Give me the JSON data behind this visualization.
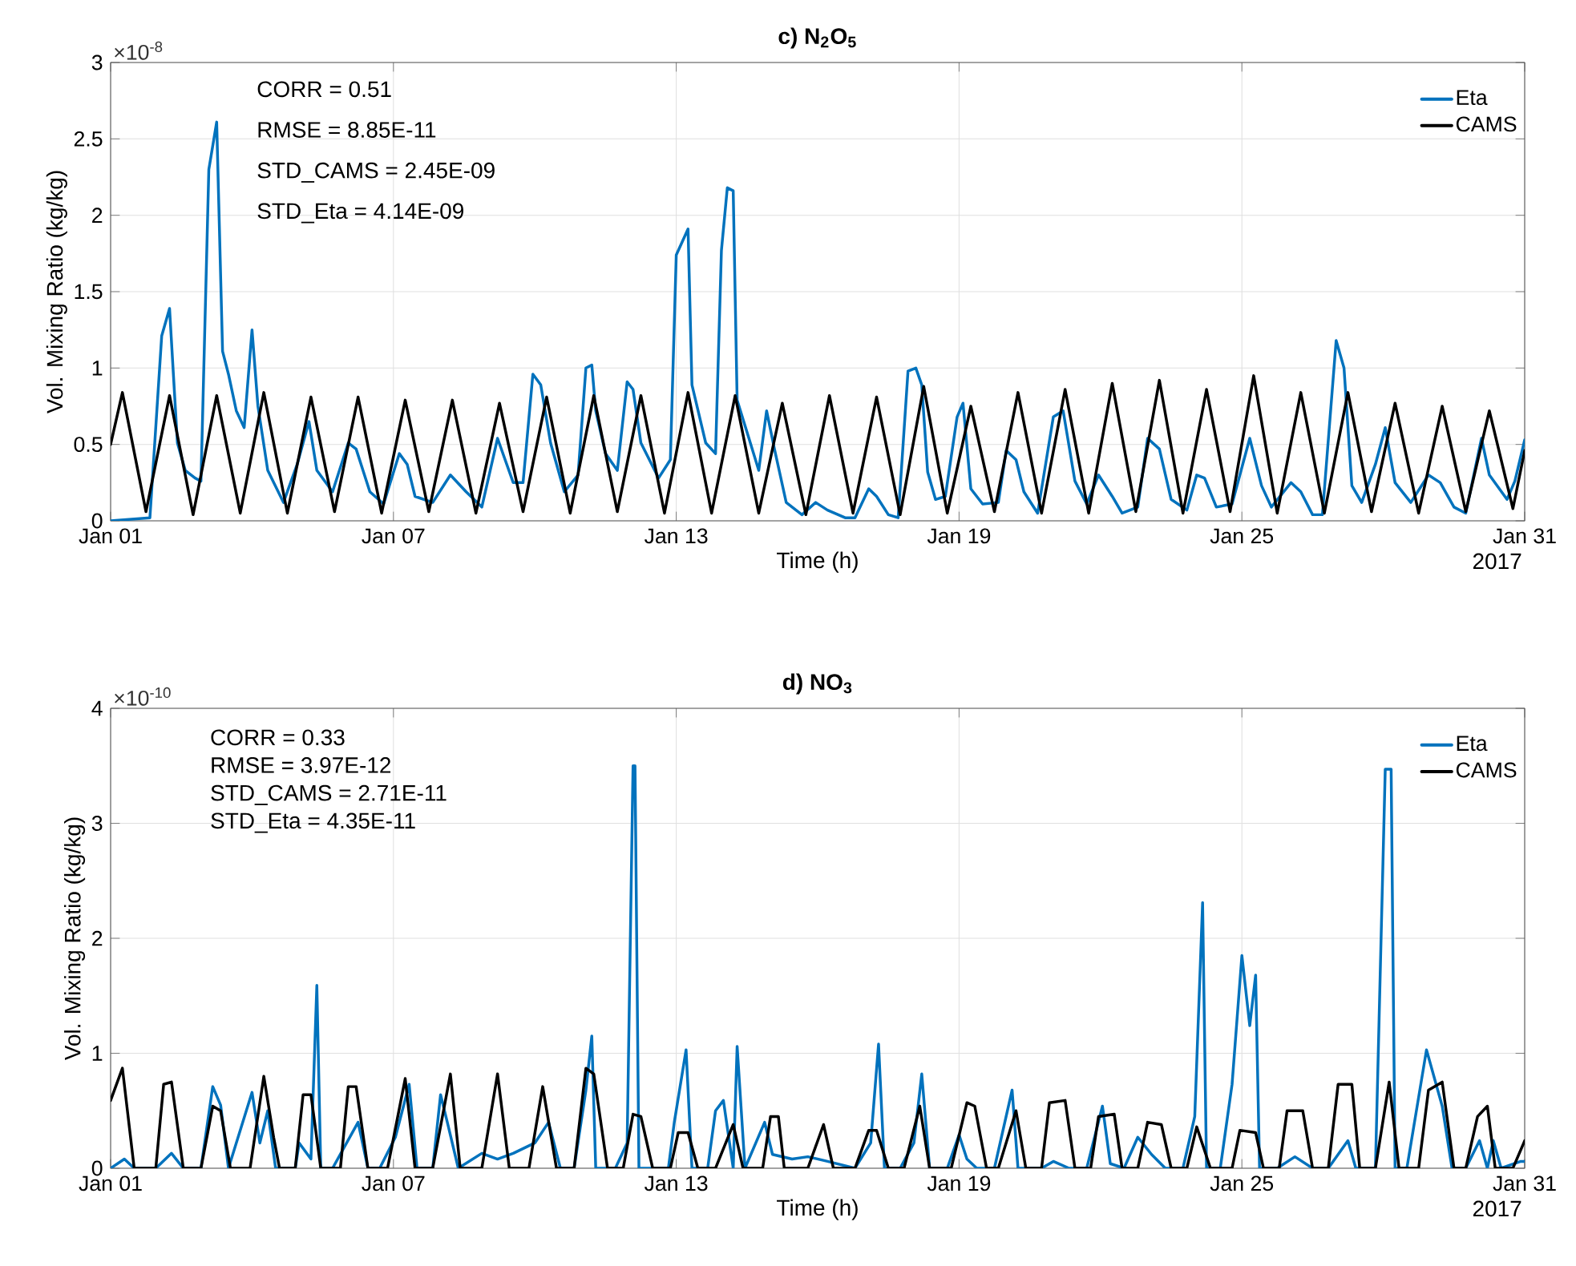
{
  "chart_data": [
    {
      "type": "line",
      "title": "c) N$_{2}$O$_{5}$",
      "xlabel": "Time (h)",
      "ylabel": "Vol. Mixing Ratio (kg/kg)",
      "xlim": [
        "2017-01-01",
        "2017-01-31"
      ],
      "xticks": [
        {
          "value": "2017-01-01",
          "label": "Jan 01"
        },
        {
          "value": "2017-01-07",
          "label": "Jan 07"
        },
        {
          "value": "2017-01-13",
          "label": "Jan 13"
        },
        {
          "value": "2017-01-19",
          "label": "Jan 19"
        },
        {
          "value": "2017-01-25",
          "label": "Jan 25"
        },
        {
          "value": "2017-01-31",
          "label": "Jan 31"
        }
      ],
      "ylim": [
        0,
        3
      ],
      "yticks": [
        0,
        0.5,
        1,
        1.5,
        2,
        2.5,
        3
      ],
      "grid": true,
      "legend": "top right",
      "annotations": [
        "×10$^{-8}$",
        "2017",
        "CORR = 0.51",
        "RMSE = 8.85E-11",
        "STD_CAMS = 2.45E-09",
        "STD_Eta = 4.14E-09"
      ],
      "series": [
        {
          "name": "Eta",
          "color": "#0072bd",
          "x": [
            "2017-01-01T00:00",
            "2017-01-01T20:00",
            "2017-01-02T02:00",
            "2017-01-02T06:00",
            "2017-01-02T10:00",
            "2017-01-02T14:00",
            "2017-01-02T19:00",
            "2017-01-02T22:00",
            "2017-01-03T02:00",
            "2017-01-03T06:00",
            "2017-01-03T09:00",
            "2017-01-03T12:00",
            "2017-01-03T16:00",
            "2017-01-03T20:00",
            "2017-01-04T00:00",
            "2017-01-04T03:00",
            "2017-01-04T08:00",
            "2017-01-04T16:00",
            "2017-01-04T23:00",
            "2017-01-05T05:00",
            "2017-01-05T09:00",
            "2017-01-05T17:00",
            "2017-01-06T01:00",
            "2017-01-06T05:00",
            "2017-01-06T12:00",
            "2017-01-06T19:00",
            "2017-01-07T03:00",
            "2017-01-07T07:00",
            "2017-01-07T11:00",
            "2017-01-07T20:00",
            "2017-01-08T05:00",
            "2017-01-08T13:00",
            "2017-01-08T21:00",
            "2017-01-09T05:00",
            "2017-01-09T13:00",
            "2017-01-09T18:00",
            "2017-01-09T23:00",
            "2017-01-10T03:00",
            "2017-01-10T08:00",
            "2017-01-10T15:00",
            "2017-01-10T22:00",
            "2017-01-11T02:00",
            "2017-01-11T05:00",
            "2017-01-11T07:00",
            "2017-01-11T12:00",
            "2017-01-11T18:00",
            "2017-01-11T23:00",
            "2017-01-12T02:00",
            "2017-01-12T06:00",
            "2017-01-12T15:00",
            "2017-01-12T21:00",
            "2017-01-13T00:00",
            "2017-01-13T06:00",
            "2017-01-13T08:00",
            "2017-01-13T15:00",
            "2017-01-13T20:00",
            "2017-01-13T23:00",
            "2017-01-14T02:00",
            "2017-01-14T05:00",
            "2017-01-14T07:00",
            "2017-01-14T13:00",
            "2017-01-14T18:00",
            "2017-01-14T22:00",
            "2017-01-15T02:00",
            "2017-01-15T08:00",
            "2017-01-15T16:00",
            "2017-01-15T23:00",
            "2017-01-16T05:00",
            "2017-01-16T14:00",
            "2017-01-16T19:00",
            "2017-01-17T02:00",
            "2017-01-17T06:00",
            "2017-01-17T12:00",
            "2017-01-17T17:00",
            "2017-01-17T22:00",
            "2017-01-18T02:00",
            "2017-01-18T05:00",
            "2017-01-18T08:00",
            "2017-01-18T12:00",
            "2017-01-18T17:00",
            "2017-01-18T23:00",
            "2017-01-19T02:00",
            "2017-01-19T06:00",
            "2017-01-19T12:00",
            "2017-01-19T20:00",
            "2017-01-20T00:00",
            "2017-01-20T05:00",
            "2017-01-20T09:00",
            "2017-01-20T16:00",
            "2017-01-21T00:00",
            "2017-01-21T05:00",
            "2017-01-21T11:00",
            "2017-01-21T17:00",
            "2017-01-21T23:00",
            "2017-01-22T06:00",
            "2017-01-22T11:00",
            "2017-01-22T19:00",
            "2017-01-23T00:00",
            "2017-01-23T06:00",
            "2017-01-23T12:00",
            "2017-01-23T20:00",
            "2017-01-24T01:00",
            "2017-01-24T05:00",
            "2017-01-24T11:00",
            "2017-01-24T19:00",
            "2017-01-25T04:00",
            "2017-01-25T10:00",
            "2017-01-25T15:00",
            "2017-01-26T01:00",
            "2017-01-26T06:00",
            "2017-01-26T12:00",
            "2017-01-26T17:00",
            "2017-01-27T00:00",
            "2017-01-27T04:00",
            "2017-01-27T08:00",
            "2017-01-27T13:00",
            "2017-01-27T20:00",
            "2017-01-28T01:00",
            "2017-01-28T06:00",
            "2017-01-28T14:00",
            "2017-01-28T23:00",
            "2017-01-29T05:00",
            "2017-01-29T12:00",
            "2017-01-29T18:00",
            "2017-01-30T02:00",
            "2017-01-30T06:00",
            "2017-01-30T15:00",
            "2017-01-30T19:00",
            "2017-01-31T00:00"
          ],
          "values": [
            0,
            0.02,
            1.21,
            1.39,
            0.51,
            0.33,
            0.28,
            0.26,
            2.3,
            2.61,
            1.11,
            0.96,
            0.72,
            0.61,
            1.25,
            0.75,
            0.33,
            0.12,
            0.37,
            0.65,
            0.33,
            0.19,
            0.51,
            0.47,
            0.19,
            0.11,
            0.44,
            0.37,
            0.16,
            0.12,
            0.3,
            0.19,
            0.09,
            0.54,
            0.25,
            0.25,
            0.96,
            0.89,
            0.51,
            0.19,
            0.3,
            1.0,
            1.02,
            0.72,
            0.44,
            0.33,
            0.91,
            0.86,
            0.51,
            0.28,
            0.4,
            1.74,
            1.91,
            0.89,
            0.51,
            0.44,
            1.77,
            2.18,
            2.16,
            0.79,
            0.54,
            0.33,
            0.72,
            0.47,
            0.12,
            0.04,
            0.12,
            0.07,
            0.02,
            0.02,
            0.21,
            0.16,
            0.04,
            0.02,
            0.98,
            1.0,
            0.89,
            0.32,
            0.14,
            0.16,
            0.68,
            0.77,
            0.21,
            0.11,
            0.12,
            0.46,
            0.4,
            0.19,
            0.05,
            0.68,
            0.72,
            0.26,
            0.11,
            0.3,
            0.16,
            0.05,
            0.09,
            0.54,
            0.47,
            0.14,
            0.07,
            0.3,
            0.28,
            0.09,
            0.11,
            0.54,
            0.23,
            0.09,
            0.25,
            0.19,
            0.04,
            0.04,
            1.18,
            1.0,
            0.23,
            0.12,
            0.37,
            0.61,
            0.25,
            0.12,
            0.3,
            0.25,
            0.09,
            0.05,
            0.54,
            0.3,
            0.14,
            0.26,
            0.53
          ]
        },
        {
          "name": "CAMS",
          "color": "#000000",
          "x": [
            "2017-01-01T00:00",
            "2017-01-01T06:00",
            "2017-01-01T18:00",
            "2017-01-02T06:00",
            "2017-01-02T18:00",
            "2017-01-03T06:00",
            "2017-01-03T18:00",
            "2017-01-04T06:00",
            "2017-01-04T18:00",
            "2017-01-05T06:00",
            "2017-01-05T18:00",
            "2017-01-06T06:00",
            "2017-01-06T18:00",
            "2017-01-07T06:00",
            "2017-01-07T18:00",
            "2017-01-08T06:00",
            "2017-01-08T18:00",
            "2017-01-09T06:00",
            "2017-01-09T18:00",
            "2017-01-10T06:00",
            "2017-01-10T18:00",
            "2017-01-11T06:00",
            "2017-01-11T18:00",
            "2017-01-12T06:00",
            "2017-01-12T18:00",
            "2017-01-13T06:00",
            "2017-01-13T18:00",
            "2017-01-14T06:00",
            "2017-01-14T18:00",
            "2017-01-15T06:00",
            "2017-01-15T18:00",
            "2017-01-16T06:00",
            "2017-01-16T18:00",
            "2017-01-17T06:00",
            "2017-01-17T18:00",
            "2017-01-18T06:00",
            "2017-01-18T18:00",
            "2017-01-19T06:00",
            "2017-01-19T18:00",
            "2017-01-20T06:00",
            "2017-01-20T18:00",
            "2017-01-21T06:00",
            "2017-01-21T18:00",
            "2017-01-22T06:00",
            "2017-01-22T18:00",
            "2017-01-23T06:00",
            "2017-01-23T18:00",
            "2017-01-24T06:00",
            "2017-01-24T18:00",
            "2017-01-25T06:00",
            "2017-01-25T18:00",
            "2017-01-26T06:00",
            "2017-01-26T18:00",
            "2017-01-27T06:00",
            "2017-01-27T18:00",
            "2017-01-28T06:00",
            "2017-01-28T18:00",
            "2017-01-29T06:00",
            "2017-01-29T18:00",
            "2017-01-30T06:00",
            "2017-01-30T18:00",
            "2017-01-31T00:00"
          ],
          "values": [
            0.5,
            0.84,
            0.06,
            0.82,
            0.04,
            0.82,
            0.05,
            0.84,
            0.05,
            0.81,
            0.06,
            0.81,
            0.05,
            0.79,
            0.06,
            0.79,
            0.05,
            0.77,
            0.06,
            0.81,
            0.05,
            0.82,
            0.06,
            0.82,
            0.05,
            0.84,
            0.05,
            0.82,
            0.05,
            0.77,
            0.04,
            0.82,
            0.05,
            0.81,
            0.04,
            0.88,
            0.05,
            0.75,
            0.06,
            0.84,
            0.05,
            0.86,
            0.05,
            0.9,
            0.06,
            0.92,
            0.05,
            0.86,
            0.06,
            0.95,
            0.05,
            0.84,
            0.05,
            0.84,
            0.06,
            0.77,
            0.05,
            0.75,
            0.06,
            0.72,
            0.08,
            0.46
          ]
        }
      ]
    },
    {
      "type": "line",
      "title": "d) NO$_{3}$",
      "xlabel": "Time (h)",
      "ylabel": "Vol. Mixing Ratio (kg/kg)",
      "xlim": [
        "2017-01-01",
        "2017-01-31"
      ],
      "xticks": [
        {
          "value": "2017-01-01",
          "label": "Jan 01"
        },
        {
          "value": "2017-01-07",
          "label": "Jan 07"
        },
        {
          "value": "2017-01-13",
          "label": "Jan 13"
        },
        {
          "value": "2017-01-19",
          "label": "Jan 19"
        },
        {
          "value": "2017-01-25",
          "label": "Jan 25"
        },
        {
          "value": "2017-01-31",
          "label": "Jan 31"
        }
      ],
      "ylim": [
        0,
        4
      ],
      "yticks": [
        0,
        1,
        2,
        3,
        4
      ],
      "grid": true,
      "legend": "top right",
      "annotations": [
        "×10$^{-10}$",
        "2017",
        "CORR = 0.33",
        "RMSE = 3.97E-12",
        "STD_CAMS = 2.71E-11",
        "STD_Eta = 4.35E-11"
      ],
      "series": [
        {
          "name": "Eta",
          "color": "#0072bd",
          "x": [
            "2017-01-01T00:00",
            "2017-01-01T07:00",
            "2017-01-01T12:00",
            "2017-01-01T23:00",
            "2017-01-02T07:00",
            "2017-01-02T13:00",
            "2017-01-02T22:00",
            "2017-01-03T04:00",
            "2017-01-03T08:00",
            "2017-01-03T12:00",
            "2017-01-04T00:00",
            "2017-01-04T04:00",
            "2017-01-04T08:00",
            "2017-01-04T12:00",
            "2017-01-04T22:00",
            "2017-01-05T00:00",
            "2017-01-05T06:00",
            "2017-01-05T09:00",
            "2017-01-05T11:00",
            "2017-01-05T17:00",
            "2017-01-06T06:00",
            "2017-01-06T11:00",
            "2017-01-06T17:00",
            "2017-01-07T01:00",
            "2017-01-07T08:00",
            "2017-01-07T12:00",
            "2017-01-07T20:00",
            "2017-01-08T00:00",
            "2017-01-08T04:00",
            "2017-01-08T09:00",
            "2017-01-08T21:00",
            "2017-01-09T05:00",
            "2017-01-09T13:00",
            "2017-01-10T00:00",
            "2017-01-10T07:00",
            "2017-01-10T13:00",
            "2017-01-10T20:00",
            "2017-01-11T02:00",
            "2017-01-11T05:00",
            "2017-01-11T07:00",
            "2017-01-11T17:00",
            "2017-01-11T23:00",
            "2017-01-12T02:00",
            "2017-01-12T03:00",
            "2017-01-12T05:00",
            "2017-01-12T20:00",
            "2017-01-12T23:00",
            "2017-01-13T05:00",
            "2017-01-13T08:00",
            "2017-01-13T16:00",
            "2017-01-13T20:00",
            "2017-01-14T00:00",
            "2017-01-14T05:00",
            "2017-01-14T07:00",
            "2017-01-14T11:00",
            "2017-01-14T21:00",
            "2017-01-15T01:00",
            "2017-01-15T11:00",
            "2017-01-15T19:00",
            "2017-01-16T05:00",
            "2017-01-16T19:00",
            "2017-01-17T03:00",
            "2017-01-17T07:00",
            "2017-01-17T10:00",
            "2017-01-17T18:00",
            "2017-01-18T01:00",
            "2017-01-18T05:00",
            "2017-01-18T09:00",
            "2017-01-18T18:00",
            "2017-01-19T00:00",
            "2017-01-19T04:00",
            "2017-01-19T09:00",
            "2017-01-19T18:00",
            "2017-01-20T03:00",
            "2017-01-20T06:00",
            "2017-01-20T18:00",
            "2017-01-21T00:00",
            "2017-01-21T08:00",
            "2017-01-21T17:00",
            "2017-01-22T01:00",
            "2017-01-22T05:00",
            "2017-01-22T12:00",
            "2017-01-22T19:00",
            "2017-01-23T02:00",
            "2017-01-23T09:00",
            "2017-01-23T18:00",
            "2017-01-24T00:00",
            "2017-01-24T04:00",
            "2017-01-24T06:00",
            "2017-01-24T13:00",
            "2017-01-24T19:00",
            "2017-01-25T00:00",
            "2017-01-25T04:00",
            "2017-01-25T07:00",
            "2017-01-25T09:00",
            "2017-01-25T18:00",
            "2017-01-26T03:00",
            "2017-01-26T12:00",
            "2017-01-26T20:00",
            "2017-01-27T06:00",
            "2017-01-27T10:00",
            "2017-01-27T20:00",
            "2017-01-28T01:00",
            "2017-01-28T04:00",
            "2017-01-28T06:00",
            "2017-01-28T12:00",
            "2017-01-28T22:00",
            "2017-01-29T06:00",
            "2017-01-29T11:00",
            "2017-01-29T18:00",
            "2017-01-30T01:00",
            "2017-01-30T05:00",
            "2017-01-30T08:00",
            "2017-01-30T12:00",
            "2017-01-30T22:00",
            "2017-01-31T00:00"
          ],
          "values": [
            0,
            0.08,
            0,
            0,
            0.13,
            0,
            0,
            0.71,
            0.55,
            0,
            0.66,
            0.22,
            0.5,
            0,
            0,
            0.22,
            0.08,
            1.59,
            0,
            0,
            0.4,
            0,
            0,
            0.27,
            0.73,
            0,
            0,
            0.64,
            0.36,
            0,
            0.13,
            0.08,
            0.13,
            0.22,
            0.4,
            0,
            0,
            0.68,
            1.15,
            0,
            0,
            0.22,
            3.5,
            3.5,
            0,
            0,
            0.4,
            1.03,
            0,
            0,
            0.5,
            0.59,
            0,
            1.06,
            0,
            0.4,
            0.12,
            0.08,
            0.1,
            0.06,
            0,
            0.22,
            1.08,
            0,
            0,
            0.22,
            0.82,
            0,
            0,
            0.29,
            0.08,
            0,
            0,
            0.68,
            0,
            0,
            0.06,
            0,
            0,
            0.54,
            0.04,
            0,
            0.27,
            0.12,
            0,
            0,
            0.45,
            2.31,
            0,
            0,
            0.73,
            1.85,
            1.24,
            1.68,
            0,
            0,
            0.1,
            0,
            0,
            0.24,
            0,
            0,
            3.47,
            3.47,
            0,
            0,
            1.03,
            0.54,
            0,
            0,
            0.24,
            0,
            0.24,
            0,
            0.06,
            0.06
          ]
        },
        {
          "name": "CAMS",
          "color": "#000000",
          "x": [
            "2017-01-01T00:00",
            "2017-01-01T06:00",
            "2017-01-01T12:00",
            "2017-01-01T23:00",
            "2017-01-02T03:00",
            "2017-01-02T07:00",
            "2017-01-02T13:00",
            "2017-01-02T22:00",
            "2017-01-03T04:00",
            "2017-01-03T08:00",
            "2017-01-03T13:00",
            "2017-01-03T23:00",
            "2017-01-04T06:00",
            "2017-01-04T11:00",
            "2017-01-04T14:00",
            "2017-01-04T22:00",
            "2017-01-05T02:00",
            "2017-01-05T06:00",
            "2017-01-05T11:00",
            "2017-01-05T21:00",
            "2017-01-06T01:00",
            "2017-01-06T05:00",
            "2017-01-06T11:00",
            "2017-01-06T21:00",
            "2017-01-07T06:00",
            "2017-01-07T11:00",
            "2017-01-07T20:00",
            "2017-01-08T05:00",
            "2017-01-08T10:00",
            "2017-01-08T21:00",
            "2017-01-09T05:00",
            "2017-01-09T11:00",
            "2017-01-09T21:00",
            "2017-01-10T04:00",
            "2017-01-10T11:00",
            "2017-01-10T20:00",
            "2017-01-11T02:00",
            "2017-01-11T06:00",
            "2017-01-11T13:00",
            "2017-01-11T21:00",
            "2017-01-12T02:00",
            "2017-01-12T06:00",
            "2017-01-12T12:00",
            "2017-01-12T21:00",
            "2017-01-13T01:00",
            "2017-01-13T06:00",
            "2017-01-13T11:00",
            "2017-01-13T20:00",
            "2017-01-14T05:00",
            "2017-01-14T10:00",
            "2017-01-14T20:00",
            "2017-01-15T00:00",
            "2017-01-15T04:00",
            "2017-01-15T07:00",
            "2017-01-15T19:00",
            "2017-01-16T03:00",
            "2017-01-16T08:00",
            "2017-01-16T19:00",
            "2017-01-17T02:00",
            "2017-01-17T06:00",
            "2017-01-17T12:00",
            "2017-01-17T20:00",
            "2017-01-18T04:00",
            "2017-01-18T09:00",
            "2017-01-18T20:00",
            "2017-01-19T04:00",
            "2017-01-19T08:00",
            "2017-01-19T14:00",
            "2017-01-19T20:00",
            "2017-01-20T05:00",
            "2017-01-20T10:00",
            "2017-01-20T18:00",
            "2017-01-20T22:00",
            "2017-01-21T06:00",
            "2017-01-21T11:00",
            "2017-01-21T19:00",
            "2017-01-21T23:00",
            "2017-01-22T07:00",
            "2017-01-22T11:00",
            "2017-01-22T19:00",
            "2017-01-23T00:00",
            "2017-01-23T07:00",
            "2017-01-23T12:00",
            "2017-01-23T20:00",
            "2017-01-24T01:00",
            "2017-01-24T08:00",
            "2017-01-24T19:00",
            "2017-01-24T23:00",
            "2017-01-25T07:00",
            "2017-01-25T11:00",
            "2017-01-25T19:00",
            "2017-01-25T23:00",
            "2017-01-26T07:00",
            "2017-01-26T12:00",
            "2017-01-26T20:00",
            "2017-01-27T01:00",
            "2017-01-27T08:00",
            "2017-01-27T12:00",
            "2017-01-27T20:00",
            "2017-01-28T03:00",
            "2017-01-28T08:00",
            "2017-01-28T18:00",
            "2017-01-28T23:00",
            "2017-01-29T06:00",
            "2017-01-29T12:00",
            "2017-01-29T18:00",
            "2017-01-30T00:00",
            "2017-01-30T05:00",
            "2017-01-30T09:00",
            "2017-01-30T18:00",
            "2017-01-31T00:00"
          ],
          "values": [
            0.59,
            0.87,
            0,
            0,
            0.73,
            0.75,
            0,
            0,
            0.54,
            0.5,
            0,
            0,
            0.8,
            0.27,
            0,
            0,
            0.64,
            0.64,
            0,
            0,
            0.71,
            0.71,
            0,
            0,
            0.78,
            0,
            0,
            0.82,
            0,
            0,
            0.82,
            0,
            0,
            0.71,
            0,
            0,
            0.87,
            0.82,
            0,
            0,
            0.47,
            0.45,
            0,
            0,
            0.31,
            0.31,
            0,
            0,
            0.38,
            0,
            0,
            0.45,
            0.45,
            0,
            0,
            0.38,
            0,
            0,
            0.33,
            0.33,
            0,
            0,
            0.54,
            0,
            0,
            0.57,
            0.54,
            0,
            0,
            0.5,
            0,
            0,
            0.57,
            0.59,
            0,
            0,
            0.45,
            0.47,
            0,
            0,
            0.4,
            0.38,
            0,
            0,
            0.36,
            0,
            0,
            0.33,
            0.31,
            0,
            0,
            0.5,
            0.5,
            0,
            0,
            0.73,
            0.73,
            0,
            0,
            0.75,
            0,
            0,
            0.68,
            0.75,
            0,
            0,
            0.45,
            0.54,
            0,
            0,
            0.24
          ]
        }
      ]
    }
  ]
}
